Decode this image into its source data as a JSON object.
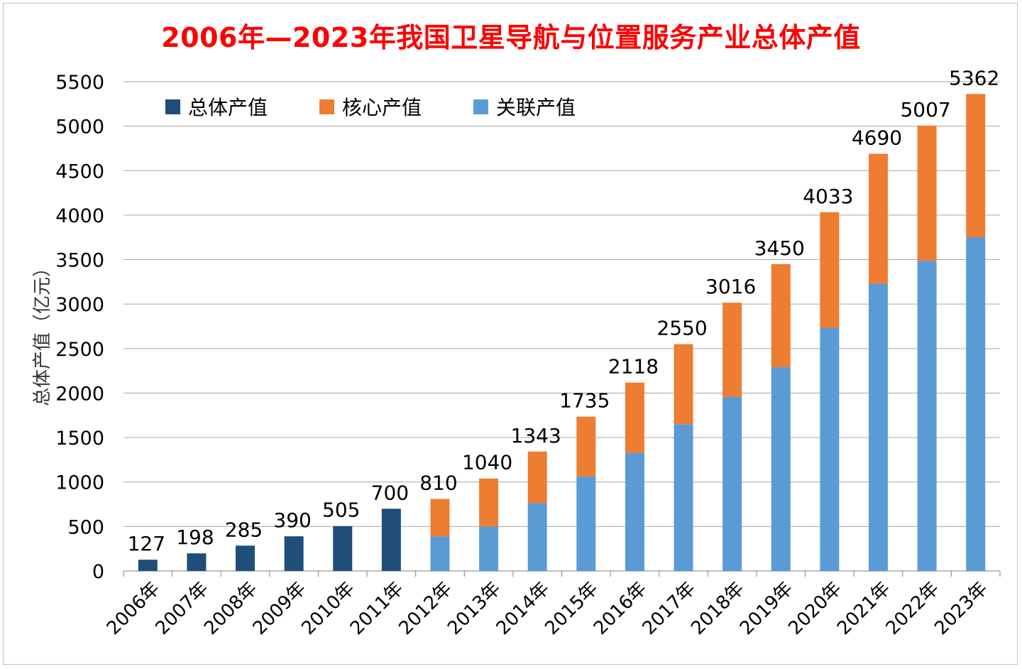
{
  "chart_data": {
    "type": "bar",
    "stacked": true,
    "title": "2006年—2023年我国卫星导航与位置服务产业总体产值",
    "xlabel": "",
    "ylabel": "总体产值（亿元）",
    "ylim": [
      0,
      5500
    ],
    "yticks": [
      0,
      500,
      1000,
      1500,
      2000,
      2500,
      3000,
      3500,
      4000,
      4500,
      5000,
      5500
    ],
    "grid": true,
    "legend_position": "top-left",
    "categories": [
      "2006年",
      "2007年",
      "2008年",
      "2009年",
      "2010年",
      "2011年",
      "2012年",
      "2013年",
      "2014年",
      "2015年",
      "2016年",
      "2017年",
      "2018年",
      "2019年",
      "2020年",
      "2021年",
      "2022年",
      "2023年"
    ],
    "series": [
      {
        "name": "总体产值",
        "color": "#1f4e79",
        "values": [
          127,
          198,
          285,
          390,
          505,
          700,
          null,
          null,
          null,
          null,
          null,
          null,
          null,
          null,
          null,
          null,
          null,
          null
        ]
      },
      {
        "name": "核心产值",
        "color": "#ed7d31",
        "values": [
          null,
          null,
          null,
          null,
          null,
          null,
          420,
          540,
          580,
          670,
          790,
          900,
          1060,
          1160,
          1300,
          1460,
          1520,
          1610
        ]
      },
      {
        "name": "关联产值",
        "color": "#5b9bd5",
        "values": [
          null,
          null,
          null,
          null,
          null,
          null,
          390,
          500,
          763,
          1065,
          1328,
          1650,
          1956,
          2290,
          2733,
          3230,
          3487,
          3752
        ]
      }
    ],
    "totals": [
      127,
      198,
      285,
      390,
      505,
      700,
      810,
      1040,
      1343,
      1735,
      2118,
      2550,
      3016,
      3450,
      4033,
      4690,
      5007,
      5362
    ]
  }
}
